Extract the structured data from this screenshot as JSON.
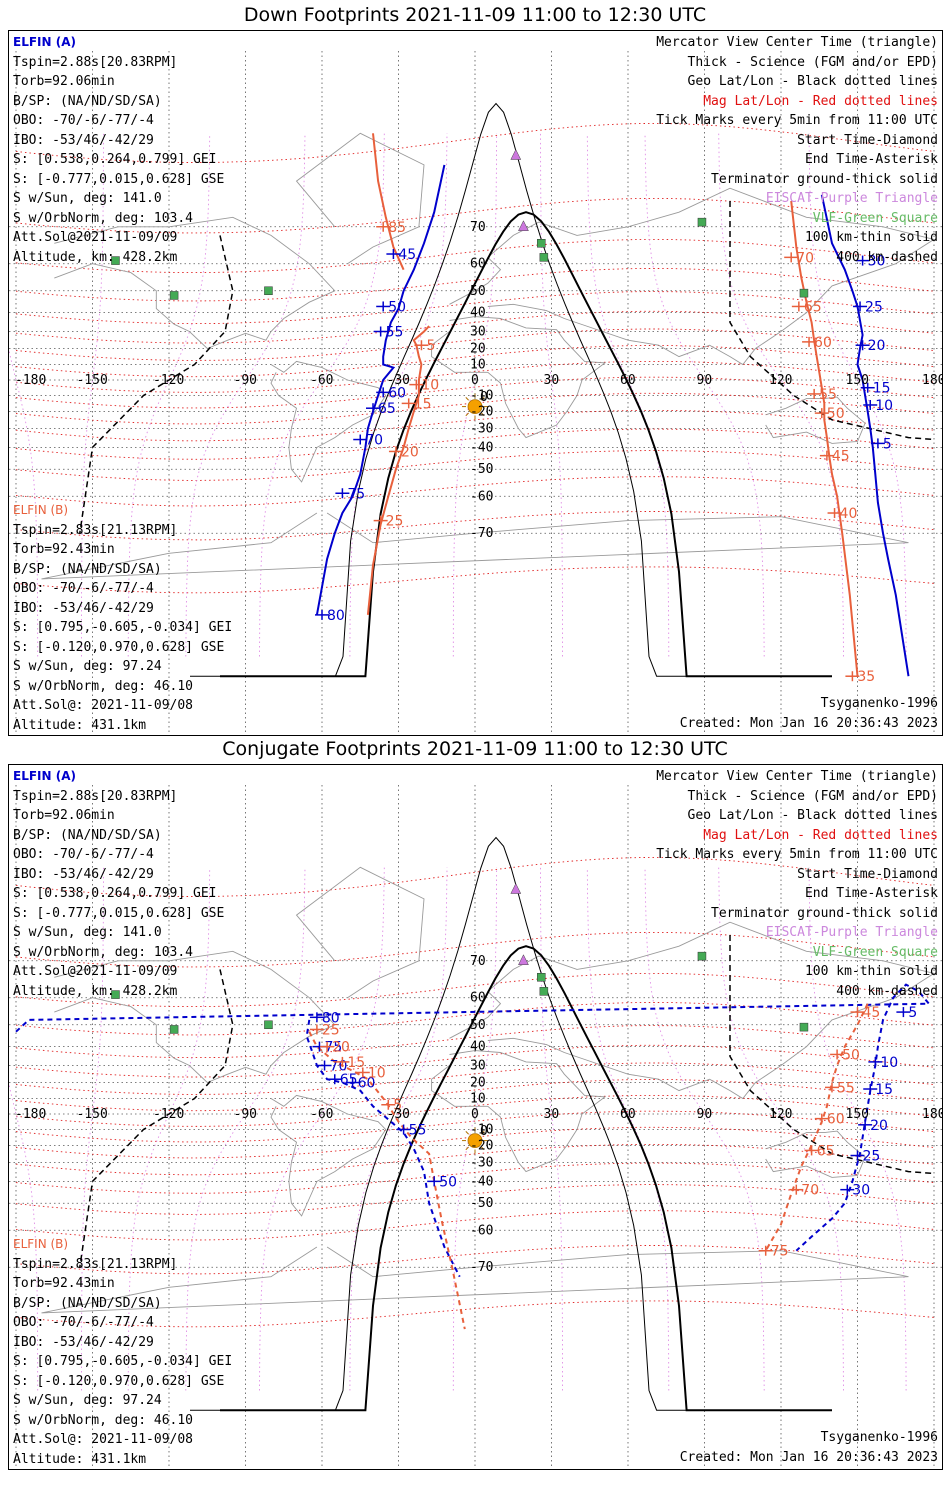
{
  "panels": [
    {
      "title": "Down Footprints 2021-11-09 11:00 to 12:30 UTC",
      "elfin_a": {
        "name": "ELFIN (A)",
        "lines": [
          "Tspin=2.88s[20.83RPM]",
          "Torb=92.06min",
          "B/SP: (NA/ND/SD/SA)",
          "OBO: -70/-6/-77/-4",
          "IBO: -53/46/-42/29",
          "S: [0.538,0.264,0.799] GEI",
          "S: [-0.777,0.015,0.628] GSE",
          "S w/Sun, deg: 141.0",
          "S w/OrbNorm, deg: 103.4",
          "Att.Sol@2021-11-09/09",
          "Altitude, km: 428.2km"
        ]
      },
      "elfin_b": {
        "name": "ELFIN (B)",
        "lines": [
          "Tspin=2.83s[21.13RPM]",
          "Torb=92.43min",
          "B/SP: (NA/ND/SD/SA)",
          "OBO: -70/-6/-77/-4",
          "IBO: -53/46/-42/29",
          "S: [0.795,-0.605,-0.034] GEI",
          "S: [-0.120,0.970,0.628] GSE",
          "S w/Sun, deg: 97.24",
          "S w/OrbNorm, deg: 46.10",
          "Att.Sol@: 2021-11-09/08",
          "Altitude: 431.1km"
        ]
      },
      "footer_right": [
        "Tsyganenko-1996",
        "Created: Mon Jan 16 20:36:43 2023"
      ],
      "track_a": [
        [
          -62,
          -82
        ],
        [
          -58,
          -75
        ],
        [
          -55,
          -70
        ],
        [
          -52,
          -65
        ],
        [
          -48,
          -60
        ],
        [
          -45,
          -52
        ],
        [
          -43,
          -40
        ],
        [
          -42,
          -30
        ],
        [
          -40,
          -20
        ],
        [
          -38,
          -10
        ],
        [
          -36,
          0
        ],
        [
          -32,
          8
        ],
        [
          -36,
          10
        ],
        [
          -36,
          15
        ],
        [
          -35,
          25
        ],
        [
          -33,
          35
        ],
        [
          -30,
          42
        ],
        [
          -28,
          50
        ],
        [
          -24,
          58
        ],
        [
          -20,
          66
        ],
        [
          -16,
          73
        ],
        [
          -12,
          80
        ]
      ],
      "track_a_ticks": [
        [
          "45",
          -32,
          63
        ],
        [
          "50",
          -36,
          43
        ],
        [
          "55",
          -37,
          30
        ],
        [
          "60",
          -36,
          -8
        ],
        [
          "65",
          -40,
          -18
        ],
        [
          "70",
          -45,
          -36
        ],
        [
          "75",
          -52,
          -59
        ],
        [
          "80",
          -60,
          -82
        ]
      ],
      "track_b": [
        [
          -42,
          -82
        ],
        [
          -40,
          -76
        ],
        [
          -37,
          -68
        ],
        [
          -34,
          -60
        ],
        [
          -31,
          -50
        ],
        [
          -28,
          -40
        ],
        [
          -26,
          -30
        ],
        [
          -24,
          -20
        ],
        [
          -22,
          -10
        ],
        [
          -22,
          0
        ],
        [
          -21,
          10
        ],
        [
          -22,
          15
        ],
        [
          -23,
          22
        ],
        [
          -24,
          25
        ],
        [
          -20,
          30
        ],
        [
          -18,
          33
        ]
      ],
      "track_b2": [
        [
          -28,
          58
        ],
        [
          -32,
          65
        ],
        [
          -35,
          72
        ],
        [
          -38,
          78
        ],
        [
          -40,
          83
        ]
      ],
      "track_b_ticks": [
        [
          "85",
          -36,
          70
        ],
        [
          "5",
          -21,
          22
        ],
        [
          "10",
          -23,
          -3
        ],
        [
          "15",
          -26,
          -15
        ],
        [
          "20",
          -31,
          -42
        ],
        [
          "25",
          -37,
          -67
        ]
      ],
      "track_a2": [
        [
          170,
          -88
        ],
        [
          165,
          -80
        ],
        [
          162,
          -75
        ],
        [
          160,
          -70
        ],
        [
          158,
          -62
        ],
        [
          157,
          -52
        ],
        [
          156,
          -40
        ],
        [
          155,
          -30
        ],
        [
          154,
          -20
        ],
        [
          153,
          -10
        ],
        [
          152,
          0
        ],
        [
          150,
          10
        ],
        [
          151,
          20
        ],
        [
          152,
          28
        ],
        [
          151,
          36
        ],
        [
          150,
          43
        ],
        [
          148,
          50
        ],
        [
          145,
          58
        ],
        [
          140,
          66
        ],
        [
          136,
          76
        ]
      ],
      "track_a2_ticks": [
        [
          "30",
          152,
          61
        ],
        [
          "25",
          151,
          43
        ],
        [
          "20",
          152,
          22
        ],
        [
          "15",
          154,
          -5
        ],
        [
          "10",
          155,
          -16
        ],
        [
          "5",
          158,
          -38
        ]
      ],
      "track_b3": [
        [
          150,
          -88
        ],
        [
          147,
          -80
        ],
        [
          144,
          -70
        ],
        [
          142,
          -60
        ],
        [
          140,
          -52
        ],
        [
          139,
          -45
        ],
        [
          138,
          -35
        ],
        [
          137,
          -25
        ],
        [
          137,
          -15
        ],
        [
          136,
          -5
        ],
        [
          135,
          5
        ],
        [
          134,
          15
        ],
        [
          133,
          25
        ],
        [
          132,
          35
        ],
        [
          130,
          45
        ],
        [
          128,
          55
        ],
        [
          126,
          65
        ],
        [
          124,
          75
        ]
      ],
      "track_b3_ticks": [
        [
          "70",
          124,
          62
        ],
        [
          "65",
          127,
          43
        ],
        [
          "60",
          131,
          24
        ],
        [
          "55",
          133,
          -9
        ],
        [
          "50",
          136,
          -21
        ],
        [
          "45",
          138,
          -44
        ],
        [
          "40",
          141,
          -65
        ],
        [
          "35",
          148,
          -88
        ]
      ]
    },
    {
      "title": "Conjugate Footprints 2021-11-09 11:00 to 12:30 UTC",
      "elfin_a": {
        "name": "ELFIN (A)",
        "lines": [
          "Tspin=2.88s[20.83RPM]",
          "Torb=92.06min",
          "B/SP: (NA/ND/SD/SA)",
          "OBO: -70/-6/-77/-4",
          "IBO: -53/46/-42/29",
          "S: [0.538,0.264,0.799] GEI",
          "S: [-0.777,0.015,0.628] GSE",
          "S w/Sun, deg: 141.0",
          "S w/OrbNorm, deg: 103.4",
          "Att.Sol@2021-11-09/09",
          "Altitude, km: 428.2km"
        ]
      },
      "elfin_b": {
        "name": "ELFIN (B)",
        "lines": [
          "Tspin=2.83s[21.13RPM]",
          "Torb=92.43min",
          "B/SP: (NA/ND/SD/SA)",
          "OBO: -70/-6/-77/-4",
          "IBO: -53/46/-42/29",
          "S: [0.795,-0.605,-0.034] GEI",
          "S: [-0.120,0.970,0.628] GSE",
          "S w/Sun, deg: 97.24",
          "S w/OrbNorm, deg: 46.10",
          "Att.Sol@: 2021-11-09/08",
          "Altitude: 431.1km"
        ]
      },
      "footer_right": [
        "Tsyganenko-1996",
        "Created: Mon Jan 16 20:36:43 2023"
      ],
      "track_a": [
        [
          -65,
          52
        ],
        [
          -66,
          45
        ],
        [
          -64,
          38
        ],
        [
          -62,
          30
        ],
        [
          -58,
          22
        ],
        [
          -52,
          20
        ],
        [
          -45,
          15
        ],
        [
          -40,
          5
        ],
        [
          -33,
          -5
        ],
        [
          -28,
          -12
        ],
        [
          -24,
          -22
        ],
        [
          -20,
          -35
        ],
        [
          -18,
          -50
        ],
        [
          -12,
          -65
        ],
        [
          -6,
          -72
        ]
      ],
      "track_a_ticks": [
        [
          "80",
          -62,
          53
        ],
        [
          "75",
          -61,
          40
        ],
        [
          "70",
          -59,
          30
        ],
        [
          "65",
          -55,
          22
        ],
        [
          "60",
          -48,
          20
        ],
        [
          "55",
          -28,
          -10
        ],
        [
          "50",
          -16,
          -40
        ]
      ],
      "track_b": [
        [
          -65,
          47
        ],
        [
          -62,
          40
        ],
        [
          -55,
          32
        ],
        [
          -48,
          27
        ],
        [
          -42,
          22
        ],
        [
          -35,
          8
        ],
        [
          -30,
          -5
        ],
        [
          -25,
          -15
        ],
        [
          -18,
          -25
        ],
        [
          -16,
          -40
        ],
        [
          -13,
          -57
        ],
        [
          -9,
          -70
        ],
        [
          -4,
          -80
        ]
      ],
      "track_b2": [],
      "track_b_ticks": [
        [
          "25",
          -62,
          48
        ],
        [
          "20",
          -58,
          40
        ],
        [
          "15",
          -52,
          32
        ],
        [
          "10",
          -44,
          26
        ],
        [
          "5",
          -34,
          6
        ]
      ],
      "track_a2": [
        [
          -180,
          47
        ],
        [
          -175,
          52
        ],
        [
          178,
          58
        ],
        [
          174,
          62
        ],
        [
          169,
          64
        ],
        [
          164,
          60
        ],
        [
          160,
          52
        ],
        [
          158,
          40
        ],
        [
          157,
          30
        ],
        [
          155,
          15
        ],
        [
          154,
          5
        ],
        [
          153,
          -5
        ],
        [
          152,
          -15
        ],
        [
          151,
          -25
        ],
        [
          148,
          -40
        ],
        [
          145,
          -50
        ],
        [
          140,
          -56
        ],
        [
          132,
          -62
        ],
        [
          126,
          -66
        ]
      ],
      "track_a2_ticks": [
        [
          "5",
          168,
          55
        ],
        [
          "10",
          157,
          32
        ],
        [
          "15",
          155,
          16
        ],
        [
          "20",
          153,
          -7
        ],
        [
          "25",
          150,
          -26
        ],
        [
          "30",
          146,
          -44
        ]
      ],
      "track_b3": [
        [
          154,
          58
        ],
        [
          150,
          50
        ],
        [
          145,
          40
        ],
        [
          142,
          30
        ],
        [
          140,
          20
        ],
        [
          138,
          5
        ],
        [
          136,
          -5
        ],
        [
          132,
          -20
        ],
        [
          128,
          -32
        ],
        [
          124,
          -46
        ],
        [
          120,
          -58
        ],
        [
          114,
          -66
        ]
      ],
      "track_b3_ticks": [
        [
          "45",
          150,
          55
        ],
        [
          "50",
          142,
          36
        ],
        [
          "55",
          140,
          17
        ],
        [
          "60",
          136,
          -3
        ],
        [
          "65",
          132,
          -23
        ],
        [
          "70",
          126,
          -44
        ],
        [
          "75",
          114,
          -66
        ]
      ]
    }
  ],
  "legend": {
    "view_center": "Mercator View Center Time (triangle)",
    "thick": "Thick - Science (FGM and/or EPD)",
    "geo": "Geo Lat/Lon - Black dotted lines",
    "mag": "Mag Lat/Lon - Red dotted lines",
    "ticks": "Tick Marks every 5min from 11:00 UTC",
    "start": "Start Time-Diamond",
    "end": "End Time-Asterisk",
    "terminator": "Terminator ground-thick solid",
    "eiscat": "EISCAT-Purple Triangle",
    "vlf": "VLF-Green Square",
    "km100": "100 km-thin solid",
    "km400": "400 km-dashed"
  },
  "axes": {
    "lon_ticks": [
      "-180",
      "-150",
      "-120",
      "-90",
      "-60",
      "-30",
      "0",
      "30",
      "60",
      "90",
      "120",
      "150",
      "180"
    ],
    "lat_ticks": [
      "70",
      "60",
      "50",
      "40",
      "30",
      "20",
      "10",
      "0",
      "-10",
      "-20",
      "-30",
      "-40",
      "-50",
      "-60",
      "-70"
    ]
  },
  "colors": {
    "elfin_a": "#0000cc",
    "elfin_b": "#e8603c",
    "mag_grid": "#e02020",
    "geo_grid": "#000000",
    "eiscat": "#cc77dd",
    "vlf": "#44aa55",
    "sun": "#f5a000"
  },
  "eiscat_sites": [
    [
      16,
      81
    ],
    [
      19,
      70
    ]
  ],
  "vlf_sites": [
    [
      26,
      66
    ],
    [
      27,
      62
    ],
    [
      89,
      71
    ],
    [
      -118,
      48
    ],
    [
      -81,
      50
    ],
    [
      -141,
      61
    ],
    [
      129,
      49
    ]
  ]
}
